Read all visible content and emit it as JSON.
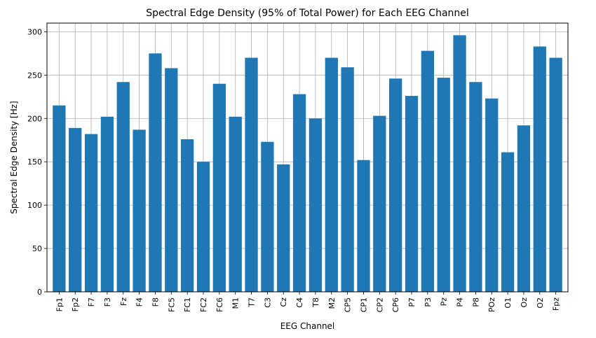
{
  "chart_data": {
    "type": "bar",
    "title": "Spectral Edge Density (95% of Total Power) for Each EEG Channel",
    "xlabel": "EEG Channel",
    "ylabel": "Spectral Edge Density [Hz]",
    "categories": [
      "Fp1",
      "Fp2",
      "F7",
      "F3",
      "Fz",
      "F4",
      "F8",
      "FC5",
      "FC1",
      "FC2",
      "FC6",
      "M1",
      "T7",
      "C3",
      "Cz",
      "C4",
      "T8",
      "M2",
      "CP5",
      "CP1",
      "CP2",
      "CP6",
      "P7",
      "P3",
      "Pz",
      "P4",
      "P8",
      "POz",
      "O1",
      "Oz",
      "O2",
      "Fpz"
    ],
    "values": [
      215,
      189,
      182,
      202,
      242,
      187,
      275,
      258,
      176,
      150,
      240,
      202,
      270,
      173,
      147,
      228,
      200,
      270,
      259,
      152,
      203,
      246,
      226,
      278,
      247,
      296,
      242,
      223,
      161,
      192,
      283,
      270
    ],
    "ylim": [
      0,
      310
    ],
    "yticks": [
      0,
      50,
      100,
      150,
      200,
      250,
      300
    ],
    "grid": true,
    "bar_color": "#1f77b4"
  }
}
